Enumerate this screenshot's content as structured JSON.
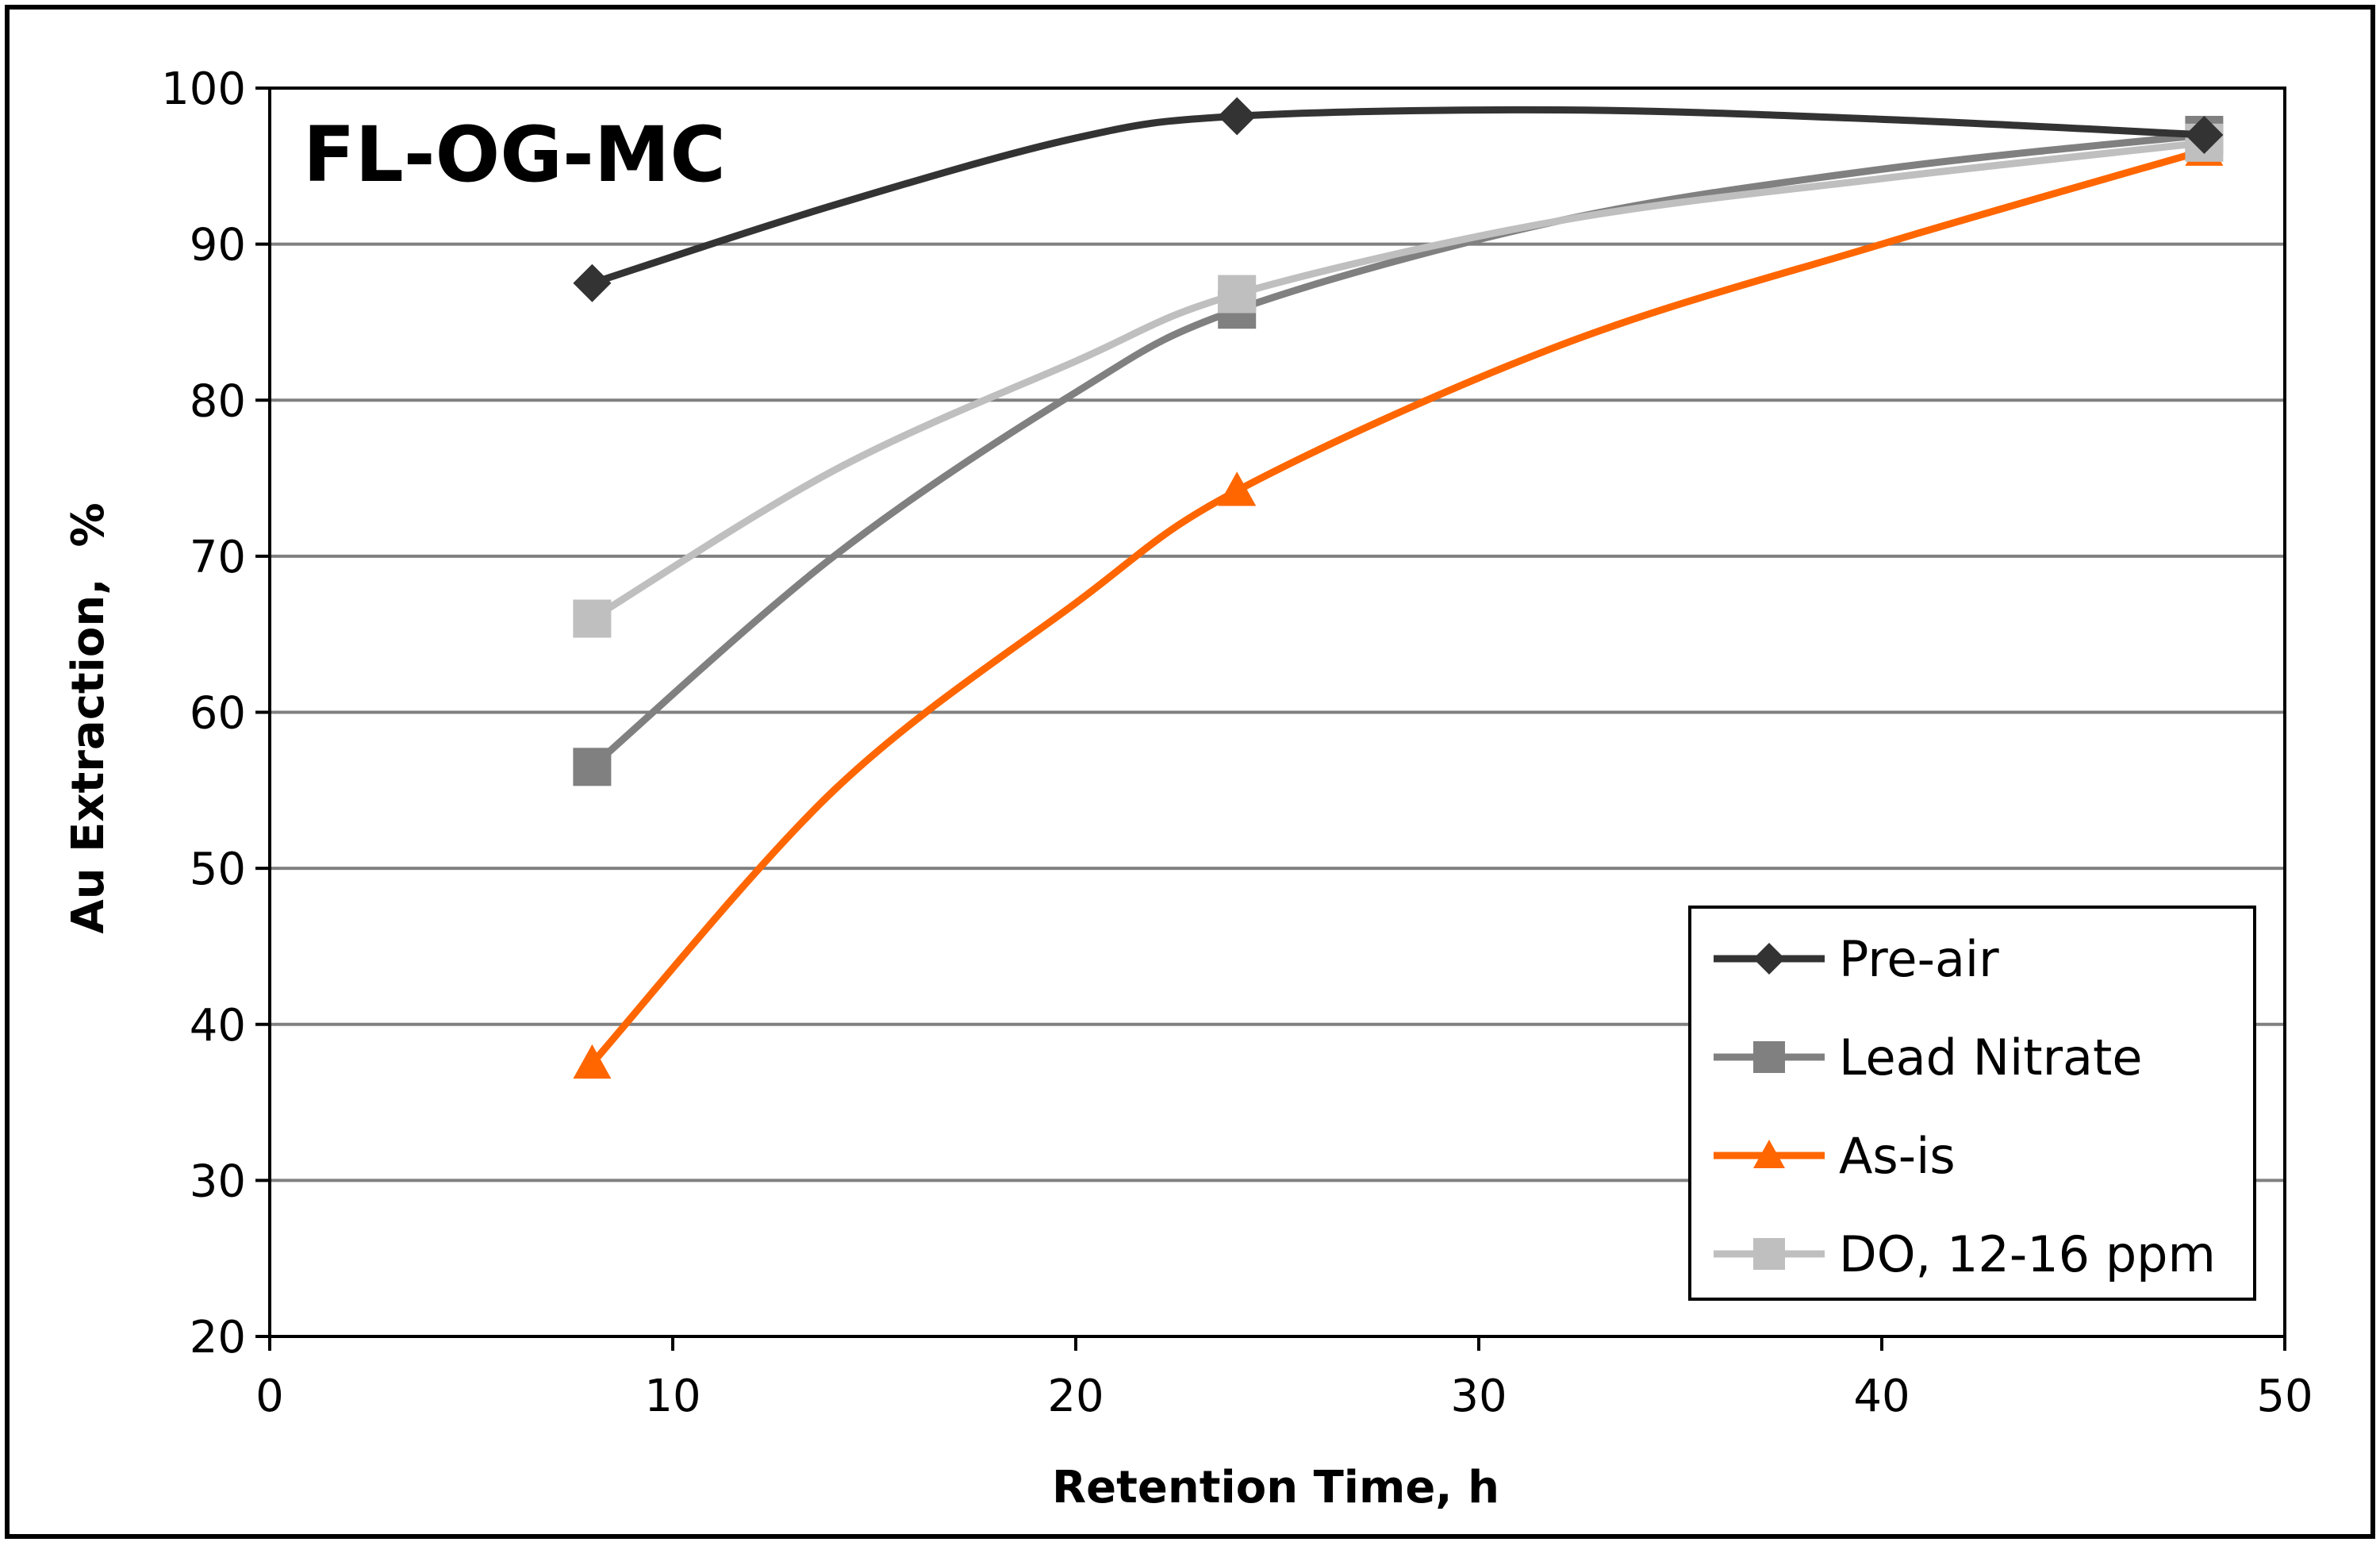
{
  "chart_data": {
    "type": "line",
    "title": "FL-OG-MC",
    "xlabel": "Retention Time, h",
    "ylabel": "Au Extraction,  %",
    "xlim": [
      0,
      50
    ],
    "ylim": [
      20,
      100
    ],
    "x_ticks": [
      0,
      10,
      20,
      30,
      40,
      50
    ],
    "y_ticks": [
      20,
      30,
      40,
      50,
      60,
      70,
      80,
      90,
      100
    ],
    "grid": "horizontal",
    "legend_position": "bottom-right",
    "series": [
      {
        "name": "Pre-air",
        "color": "#333333",
        "marker": "diamond",
        "x": [
          8,
          24,
          48
        ],
        "y": [
          87.5,
          98.2,
          97.0
        ],
        "curve_through": [
          [
            8,
            87.5
          ],
          [
            14,
            92.5
          ],
          [
            20,
            96.8
          ],
          [
            24,
            98.2
          ],
          [
            32,
            98.6
          ],
          [
            40,
            98.0
          ],
          [
            48,
            97.0
          ]
        ]
      },
      {
        "name": "Lead Nitrate",
        "color": "#808080",
        "marker": "square",
        "x": [
          8,
          24,
          48
        ],
        "y": [
          56.5,
          85.8,
          97.0
        ],
        "curve_through": [
          [
            8,
            56.5
          ],
          [
            14,
            70.0
          ],
          [
            20,
            80.5
          ],
          [
            24,
            85.8
          ],
          [
            32,
            91.5
          ],
          [
            40,
            94.8
          ],
          [
            48,
            97.0
          ]
        ]
      },
      {
        "name": "As-is",
        "color": "#ff6600",
        "marker": "triangle",
        "x": [
          8,
          24,
          48
        ],
        "y": [
          37.5,
          74.2,
          96.0
        ],
        "curve_through": [
          [
            8,
            37.5
          ],
          [
            14,
            55.0
          ],
          [
            20,
            67.0
          ],
          [
            24,
            74.2
          ],
          [
            32,
            83.5
          ],
          [
            40,
            90.0
          ],
          [
            48,
            96.0
          ]
        ]
      },
      {
        "name": "DO, 12-16 ppm",
        "color": "#bfbfbf",
        "marker": "square",
        "x": [
          8,
          24,
          48
        ],
        "y": [
          66.0,
          86.8,
          96.5
        ],
        "curve_through": [
          [
            8,
            66.0
          ],
          [
            14,
            75.5
          ],
          [
            20,
            82.5
          ],
          [
            24,
            86.8
          ],
          [
            32,
            91.5
          ],
          [
            40,
            94.2
          ],
          [
            48,
            96.5
          ]
        ]
      }
    ]
  }
}
